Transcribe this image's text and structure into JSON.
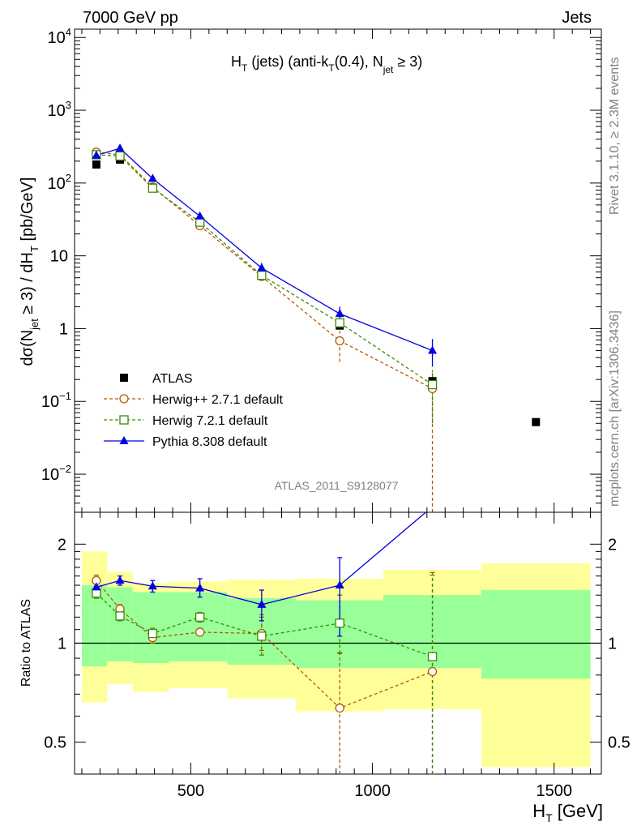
{
  "header": {
    "left": "7000 GeV pp",
    "right": "Jets"
  },
  "side_text": {
    "rivet": "Rivet 3.1.10, ≥ 2.3M events",
    "mcplots": "mcplots.cern.ch [arXiv:1306.3436]"
  },
  "analysis_id": "ATLAS_2011_S9128077",
  "title": {
    "H": "H",
    "T": "T",
    "part1": " (jets) (anti-k",
    "kT": "T",
    "part2": "(0.4), N",
    "jet": "jet",
    "part3": " ≥ 3)"
  },
  "ylabel_main": {
    "a": "dσ(N",
    "jet": "jet",
    "b": " ≥ 3) / dH",
    "T": "T",
    "c": " [pb/GeV]"
  },
  "ylabel_ratio": "Ratio to ATLAS",
  "xlabel": {
    "H": "H",
    "T": "T",
    "unit": " [GeV]"
  },
  "legend": [
    {
      "label": "ATLAS",
      "color": "#000000",
      "marker": "square-filled"
    },
    {
      "label": "Herwig++ 2.7.1 default",
      "color": "#b35900",
      "marker": "circle-open"
    },
    {
      "label": "Herwig 7.2.1 default",
      "color": "#3a8c00",
      "marker": "square-open"
    },
    {
      "label": "Pythia 8.308 default",
      "color": "#0000e6",
      "marker": "triangle-filled"
    }
  ],
  "chart_data": [
    {
      "type": "scatter",
      "panel": "main",
      "yscale": "log",
      "xlim": [
        180,
        1630
      ],
      "ylim": [
        0.003,
        13000
      ],
      "x_tick_labels": [
        "500",
        "1000",
        "1500"
      ],
      "y_ticks": [
        {
          "v": 0.01,
          "b": "10",
          "e": "−2"
        },
        {
          "v": 0.1,
          "b": "10",
          "e": "−1"
        },
        {
          "v": 1,
          "b": "1",
          "e": ""
        },
        {
          "v": 10,
          "b": "10",
          "e": ""
        },
        {
          "v": 100,
          "b": "10",
          "e": "2"
        },
        {
          "v": 1000,
          "b": "10",
          "e": "3"
        },
        {
          "v": 10000,
          "b": "10",
          "e": "4"
        }
      ],
      "x": [
        240,
        305,
        395,
        525,
        695,
        910,
        1165,
        1450
      ],
      "series": [
        {
          "name": "ATLAS",
          "values": [
            180,
            210,
            85,
            28,
            5.5,
            1.1,
            0.19,
            0.052
          ],
          "yerr": [
            [
              0,
              0
            ],
            [
              0,
              0
            ],
            [
              0,
              0
            ],
            [
              0,
              0
            ],
            [
              0,
              0
            ],
            [
              0,
              0
            ],
            [
              0,
              0
            ],
            [
              0,
              0
            ]
          ]
        },
        {
          "name": "Herwig++ 2.7.1 default",
          "values": [
            265,
            245,
            88,
            26,
            5.2,
            0.68,
            0.15,
            null
          ],
          "yerr": [
            [
              0,
              0
            ],
            [
              0,
              0
            ],
            [
              0,
              0
            ],
            [
              0,
              0
            ],
            [
              0,
              0
            ],
            [
              0.33,
              0.25
            ],
            [
              0.15,
              0.1
            ],
            [
              0,
              0
            ]
          ]
        },
        {
          "name": "Herwig 7.2.1 default",
          "values": [
            245,
            235,
            85,
            29,
            5.4,
            1.2,
            0.17,
            null
          ],
          "yerr": [
            [
              0,
              0
            ],
            [
              0,
              0
            ],
            [
              0,
              0
            ],
            [
              0,
              0
            ],
            [
              0,
              0
            ],
            [
              0,
              0
            ],
            [
              0.12,
              0.1
            ],
            [
              0,
              0
            ]
          ]
        },
        {
          "name": "Pythia 8.308 default",
          "values": [
            240,
            300,
            115,
            35,
            6.8,
            1.6,
            0.5,
            null
          ],
          "yerr": [
            [
              0,
              0
            ],
            [
              0,
              0
            ],
            [
              0,
              0
            ],
            [
              0,
              0
            ],
            [
              0.7,
              1.2
            ],
            [
              0.4,
              0.4
            ],
            [
              0.2,
              0.22
            ],
            [
              0,
              0
            ]
          ]
        }
      ]
    },
    {
      "type": "scatter",
      "panel": "ratio",
      "yscale": "log",
      "xlim": [
        180,
        1630
      ],
      "ylim": [
        0.4,
        2.5
      ],
      "y_tick_labels": [
        "0.5",
        "1",
        "2"
      ],
      "x_tick_labels": [
        "500",
        "1000",
        "1500"
      ],
      "bands": [
        {
          "x0": 200,
          "x1": 270,
          "inner": [
            0.85,
            1.5
          ],
          "outer": [
            0.66,
            1.9
          ]
        },
        {
          "x0": 270,
          "x1": 340,
          "inner": [
            0.88,
            1.48
          ],
          "outer": [
            0.75,
            1.65
          ]
        },
        {
          "x0": 340,
          "x1": 440,
          "inner": [
            0.87,
            1.43
          ],
          "outer": [
            0.71,
            1.52
          ]
        },
        {
          "x0": 440,
          "x1": 600,
          "inner": [
            0.88,
            1.43
          ],
          "outer": [
            0.73,
            1.54
          ]
        },
        {
          "x0": 600,
          "x1": 790,
          "inner": [
            0.86,
            1.37
          ],
          "outer": [
            0.68,
            1.56
          ]
        },
        {
          "x0": 790,
          "x1": 1030,
          "inner": [
            0.84,
            1.35
          ],
          "outer": [
            0.62,
            1.57
          ]
        },
        {
          "x0": 1030,
          "x1": 1300,
          "inner": [
            0.84,
            1.4
          ],
          "outer": [
            0.63,
            1.67
          ]
        },
        {
          "x0": 1300,
          "x1": 1600,
          "inner": [
            0.78,
            1.45
          ],
          "outer": [
            0.42,
            1.75
          ]
        }
      ],
      "x": [
        240,
        305,
        395,
        525,
        695,
        910,
        1165
      ],
      "series": [
        {
          "name": "Herwig++ 2.7.1 default",
          "values": [
            1.55,
            1.27,
            1.04,
            1.08,
            1.07,
            0.635,
            0.82
          ],
          "yerr": [
            [
              0.06,
              0.06
            ],
            [
              0.04,
              0.04
            ],
            [
              0.04,
              0.05
            ],
            [
              0,
              0
            ],
            [
              0.12,
              0.15
            ],
            [
              0.3,
              0.3
            ],
            [
              0.5,
              0.82
            ]
          ]
        },
        {
          "name": "Herwig 7.2.1 default",
          "values": [
            1.42,
            1.21,
            1.07,
            1.2,
            1.05,
            1.15,
            0.91
          ],
          "yerr": [
            [
              0.05,
              0.06
            ],
            [
              0.04,
              0.04
            ],
            [
              0.04,
              0.04
            ],
            [
              0.04,
              0.04
            ],
            [
              0.13,
              0.15
            ],
            [
              0.22,
              0.25
            ],
            [
              0.6,
              0.7
            ]
          ]
        },
        {
          "name": "Pythia 8.308 default",
          "values": [
            1.48,
            1.55,
            1.49,
            1.47,
            1.31,
            1.5,
            2.6
          ],
          "yerr": [
            [
              0.04,
              0.04
            ],
            [
              0.05,
              0.05
            ],
            [
              0.06,
              0.06
            ],
            [
              0.09,
              0.1
            ],
            [
              0.14,
              0.14
            ],
            [
              0.45,
              0.32
            ],
            [
              0,
              0
            ]
          ]
        }
      ]
    }
  ]
}
